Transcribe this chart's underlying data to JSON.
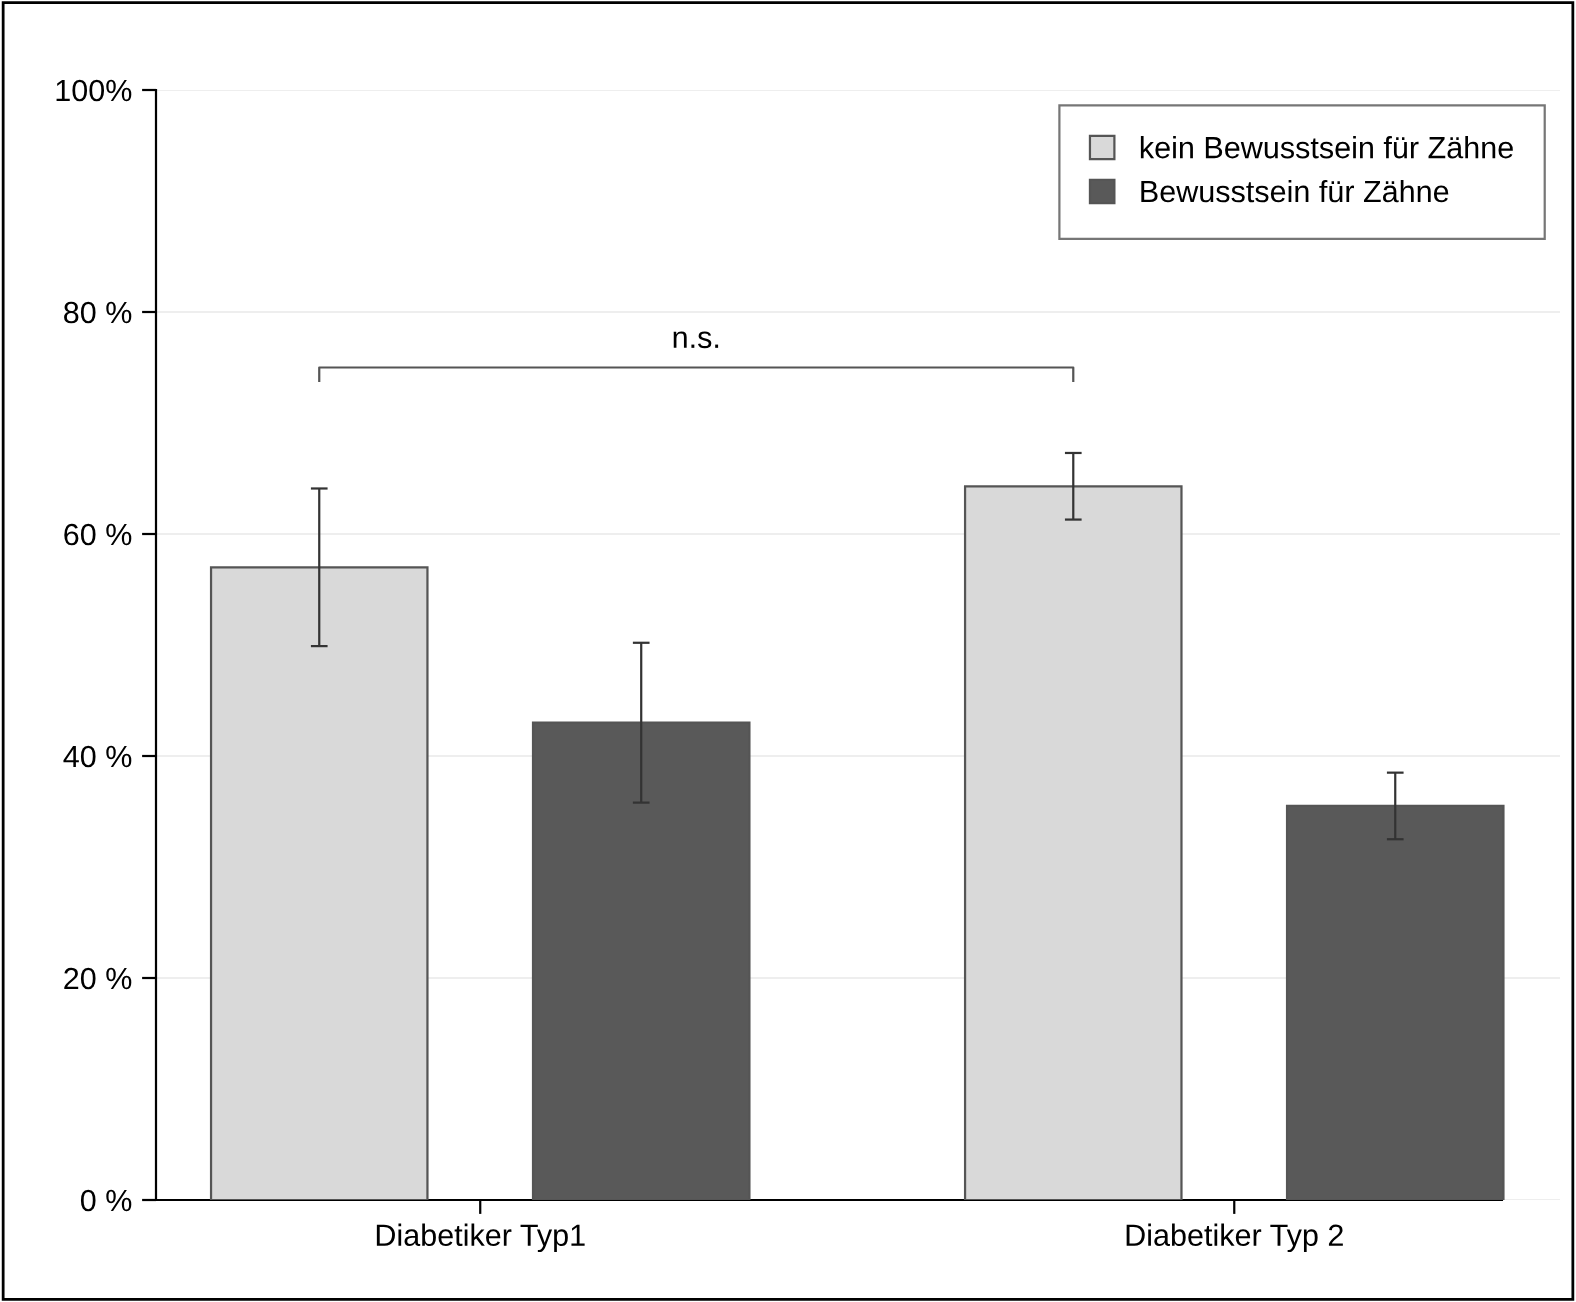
{
  "chart_data": {
    "type": "bar",
    "categories": [
      "Diabetiker Typ1",
      "Diabetiker Typ 2"
    ],
    "series": [
      {
        "name": "kein Bewusstsein für Zähne",
        "color": "#d9d9d9",
        "values": [
          57.0,
          64.3
        ],
        "errors": [
          7.1,
          3.0
        ]
      },
      {
        "name": "Bewusstsein für Zähne",
        "color": "#595959",
        "values": [
          43.0,
          35.5
        ],
        "errors": [
          7.2,
          3.0
        ]
      }
    ],
    "ylim": [
      0,
      100
    ],
    "yticks": [
      {
        "value": 0,
        "label": "0 %"
      },
      {
        "value": 20,
        "label": "20 %"
      },
      {
        "value": 40,
        "label": "40 %"
      },
      {
        "value": 60,
        "label": "60 %"
      },
      {
        "value": 80,
        "label": "80 %"
      },
      {
        "value": 100,
        "label": "100%"
      }
    ],
    "grid": "y",
    "legend": "top right",
    "annotations": [
      "n.s."
    ]
  }
}
